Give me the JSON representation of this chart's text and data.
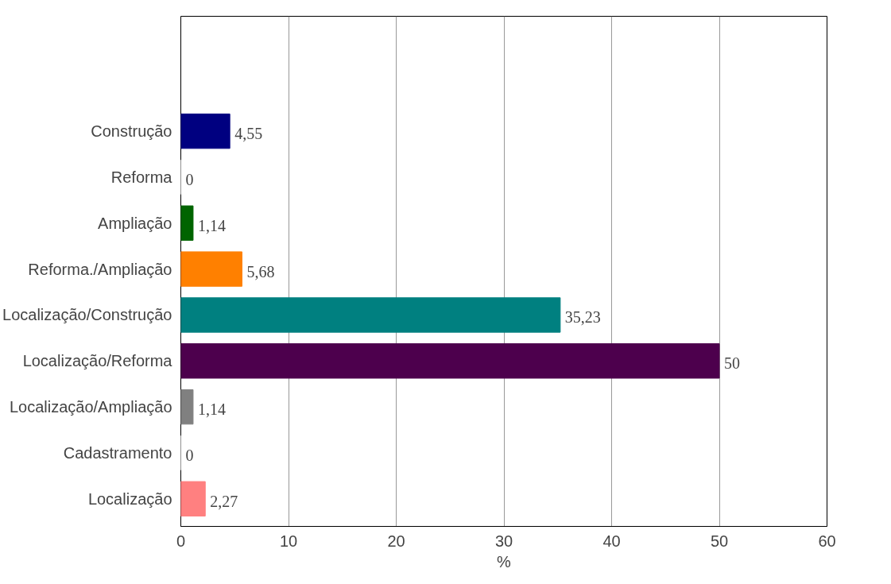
{
  "chart_data": {
    "type": "bar",
    "orientation": "horizontal",
    "xlabel": "%",
    "categories": [
      "Construção",
      "Reforma",
      "Ampliação",
      "Reforma./Ampliação",
      "Localização/Construção",
      "Localização/Reforma",
      "Localização/Ampliação",
      "Cadastramento",
      "Localização"
    ],
    "values": [
      4.55,
      0,
      1.14,
      5.68,
      35.23,
      50,
      1.14,
      0,
      2.27
    ],
    "colors": [
      "#000080",
      "#c0c0c0",
      "#006400",
      "#ff8000",
      "#008080",
      "#4d004d",
      "#808080",
      "#c0c0c0",
      "#ff8080"
    ],
    "value_labels": [
      "4,55",
      "0",
      "1,14",
      "5,68",
      "35,23",
      "50",
      "1,14",
      "0",
      "2,27"
    ],
    "xlim": [
      0,
      60
    ],
    "xticks": [
      0,
      10,
      20,
      30,
      40,
      50,
      60
    ],
    "grid": "x"
  }
}
